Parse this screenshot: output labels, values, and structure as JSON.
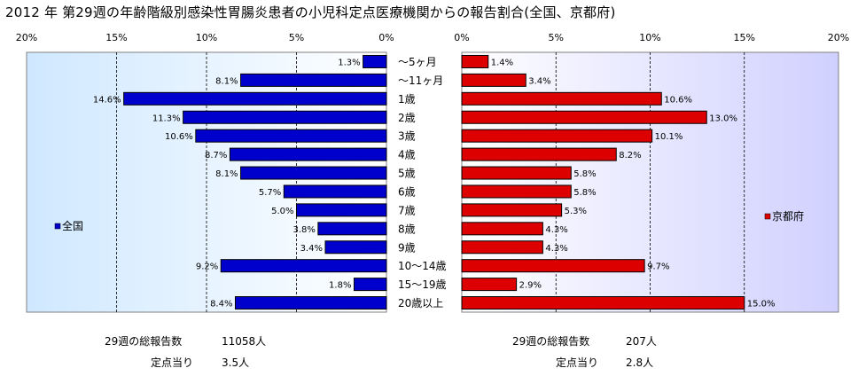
{
  "title": "2012 年 第29週の年齢階級別感染性胃腸炎患者の小児科定点医療機関からの報告割合(全国、京都府)",
  "chart_data": {
    "type": "bar",
    "orientation": "horizontal-butterfly",
    "categories": [
      "～5ヶ月",
      "～11ヶ月",
      "1歳",
      "2歳",
      "3歳",
      "4歳",
      "5歳",
      "6歳",
      "7歳",
      "8歳",
      "9歳",
      "10～14歳",
      "15～19歳",
      "20歳以上"
    ],
    "series": [
      {
        "name": "全国",
        "color": "#0000cc",
        "values": [
          1.3,
          8.1,
          14.6,
          11.3,
          10.6,
          8.7,
          8.1,
          5.7,
          5.0,
          3.8,
          3.4,
          9.2,
          1.8,
          8.4
        ],
        "labels": [
          "1.3%",
          "8.1%",
          "14.6%",
          "11.3%",
          "10.6%",
          "8.7%",
          "8.1%",
          "5.7%",
          "5.0%",
          "3.8%",
          "3.4%",
          "9.2%",
          "1.8%",
          "8.4%"
        ]
      },
      {
        "name": "京都府",
        "color": "#dd0000",
        "values": [
          1.4,
          3.4,
          10.6,
          13.0,
          10.1,
          8.2,
          5.8,
          5.8,
          5.3,
          4.3,
          4.3,
          9.7,
          2.9,
          15.0
        ],
        "labels": [
          "1.4%",
          "3.4%",
          "10.6%",
          "13.0%",
          "10.1%",
          "8.2%",
          "5.8%",
          "5.8%",
          "5.3%",
          "4.3%",
          "4.3%",
          "9.7%",
          "2.9%",
          "15.0%"
        ]
      }
    ],
    "xlim": [
      0,
      20
    ],
    "left_ticks": [
      "20%",
      "15%",
      "10%",
      "5%",
      "0%"
    ],
    "right_ticks": [
      "0%",
      "5%",
      "10%",
      "15%",
      "20%"
    ],
    "grid": true,
    "legend_placement": "inside each panel, middle"
  },
  "footer": {
    "left_total_label": "29週の総報告数",
    "left_total_value": "11058人",
    "left_per_label": "定点当り",
    "left_per_value": "3.5人",
    "right_total_label": "29週の総報告数",
    "right_total_value": "207人",
    "right_per_label": "定点当り",
    "right_per_value": "2.8人"
  }
}
